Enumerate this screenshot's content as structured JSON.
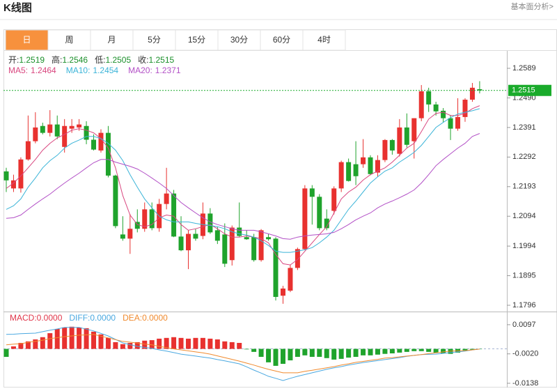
{
  "header": {
    "title": "K线图",
    "link": "基本面分析>"
  },
  "tabs": {
    "labels": [
      "日",
      "周",
      "月",
      "5分",
      "15分",
      "30分",
      "60分",
      "4时"
    ],
    "active": 0,
    "active_color": "#f7913d"
  },
  "chart_data": [
    {
      "type": "candlestick",
      "up_color": "#e8312f",
      "down_color": "#1fa32c",
      "ohlc_labels": [
        "开:",
        "高:",
        "低:",
        "收:"
      ],
      "ylim": [
        1.1775,
        1.2645
      ],
      "yticks": [
        1.2589,
        {
          "value": 1.249,
          "label": "1.2490"
        },
        1.2391,
        1.2292,
        1.2193,
        1.2094,
        1.1994,
        1.1895,
        1.1796
      ],
      "grid": false,
      "open": [
        1.2244,
        1.2187,
        1.2187,
        1.2284,
        1.2345,
        1.2396,
        1.2373,
        1.2401,
        1.2326,
        1.2387,
        1.2391,
        1.2396,
        1.235,
        1.2314,
        1.2373,
        1.223,
        1.2033,
        1.2019,
        1.2075,
        1.2052,
        1.2117,
        1.2054,
        1.2135,
        1.217,
        1.2026,
        1.198,
        1.2035,
        1.2028,
        1.2103,
        1.2047,
        1.2033,
        1.1947,
        1.2056,
        1.2024,
        1.2024,
        1.1947,
        1.2024,
        1.2019,
        1.1828,
        1.1845,
        1.1921,
        1.1984,
        1.2187,
        1.2159,
        1.2086,
        1.2112,
        1.2187,
        1.2275,
        1.2268,
        1.2268,
        1.2291,
        1.224,
        1.2282,
        1.2349,
        1.2303,
        1.2391,
        1.2345,
        1.2422,
        1.2512,
        1.2468,
        1.2447,
        1.2422,
        1.2387,
        1.2426,
        1.2484,
        1.2519
      ],
      "high": [
        1.2256,
        1.2233,
        1.2291,
        1.2431,
        1.2442,
        1.2407,
        1.2449,
        1.2431,
        1.2419,
        1.2419,
        1.2419,
        1.2412,
        1.2368,
        1.2385,
        1.2396,
        1.2233,
        1.2094,
        1.2101,
        1.2117,
        1.214,
        1.214,
        1.2152,
        1.2256,
        1.2182,
        1.2094,
        1.2047,
        1.2051,
        1.214,
        1.2121,
        1.2058,
        1.207,
        1.2063,
        1.214,
        1.2047,
        1.2035,
        1.2051,
        1.2035,
        1.2024,
        1.1861,
        1.1931,
        1.1989,
        1.2198,
        1.2198,
        1.2168,
        1.2117,
        1.2194,
        1.228,
        1.2287,
        1.2345,
        1.2352,
        1.2298,
        1.2298,
        1.2352,
        1.2352,
        1.2419,
        1.2438,
        1.2422,
        1.2533,
        1.2524,
        1.2477,
        1.2456,
        1.2433,
        1.2489,
        1.2489,
        1.254,
        1.2546
      ],
      "low": [
        1.2175,
        1.2175,
        1.2173,
        1.228,
        1.2338,
        1.2368,
        1.2361,
        1.2352,
        1.2307,
        1.2373,
        1.238,
        1.2335,
        1.2314,
        1.2307,
        1.2224,
        1.2054,
        1.2012,
        1.1968,
        1.204,
        1.2042,
        1.2047,
        1.2042,
        1.2117,
        1.2024,
        1.1977,
        1.1917,
        1.2012,
        1.2017,
        1.2035,
        1.2001,
        1.1924,
        1.1929,
        1.2024,
        1.2015,
        1.1942,
        1.1942,
        1.2012,
        1.1812,
        1.1801,
        1.184,
        1.1914,
        1.198,
        1.2066,
        1.2047,
        1.2047,
        1.21,
        1.2175,
        1.221,
        1.2198,
        1.2256,
        1.2231,
        1.2226,
        1.2275,
        1.23,
        1.2294,
        1.2324,
        1.2287,
        1.2412,
        1.2443,
        1.2431,
        1.2408,
        1.2349,
        1.238,
        1.241,
        1.2477,
        1.2505
      ],
      "close": [
        1.2214,
        1.2214,
        1.2284,
        1.2345,
        1.2391,
        1.2373,
        1.2401,
        1.2361,
        1.2396,
        1.2396,
        1.2401,
        1.235,
        1.2317,
        1.2373,
        1.223,
        1.2061,
        1.2019,
        1.2052,
        1.2052,
        1.2117,
        1.2054,
        1.2135,
        1.217,
        1.2026,
        1.198,
        1.2035,
        1.2019,
        1.2103,
        1.204,
        1.2012,
        1.1935,
        1.2056,
        1.2028,
        1.2017,
        1.1947,
        1.2047,
        1.2017,
        1.1824,
        1.1852,
        1.1921,
        1.1984,
        1.2187,
        1.2159,
        1.2054,
        1.2054,
        1.2187,
        1.2275,
        1.2212,
        1.2228,
        1.2291,
        1.2235,
        1.2282,
        1.2349,
        1.2314,
        1.2391,
        1.2333,
        1.2422,
        1.2512,
        1.2468,
        1.2445,
        1.2422,
        1.2387,
        1.2426,
        1.2484,
        1.2524,
        1.2515
      ],
      "series": [
        {
          "name": "MA5:",
          "color": "#d9467f",
          "values": [
            1.2187,
            1.2205,
            1.2229,
            1.2256,
            1.2284,
            1.2315,
            1.2338,
            1.2356,
            1.2368,
            1.2382,
            1.2387,
            1.2382,
            1.2373,
            1.2354,
            1.2322,
            1.2256,
            1.2163,
            1.2098,
            1.2066,
            1.2059,
            1.2066,
            1.2089,
            1.2098,
            1.2094,
            1.2066,
            1.2047,
            1.2052,
            1.2059,
            1.2066,
            1.2052,
            1.2035,
            1.2024,
            1.2024,
            1.2028,
            1.2024,
            1.2019,
            1.2005,
            1.1966,
            1.1935,
            1.1931,
            1.1949,
            1.1977,
            1.2005,
            1.2033,
            1.2059,
            1.2105,
            1.2152,
            1.2175,
            1.2191,
            1.2215,
            1.2233,
            1.2245,
            1.2256,
            1.2275,
            1.2298,
            1.2322,
            1.2338,
            1.2377,
            1.2419,
            1.2438,
            1.2442,
            1.2431,
            1.2431,
            1.2438,
            1.2454,
            1.2464
          ]
        },
        {
          "name": "MA10:",
          "color": "#3bb4d8",
          "values": [
            1.2117,
            1.2129,
            1.2152,
            1.2191,
            1.2222,
            1.2256,
            1.228,
            1.2298,
            1.2322,
            1.2338,
            1.2349,
            1.2361,
            1.2361,
            1.2354,
            1.2338,
            1.2315,
            1.228,
            1.2233,
            1.2191,
            1.2152,
            1.2122,
            1.2094,
            1.2082,
            1.2075,
            1.2075,
            1.2075,
            1.207,
            1.2066,
            1.2063,
            1.2059,
            1.2052,
            1.2042,
            1.2035,
            1.2031,
            1.2024,
            1.2012,
            1.1996,
            1.1977,
            1.1973,
            1.1973,
            1.1977,
            1.1982,
            1.1989,
            1.2005,
            1.2024,
            1.2047,
            1.2082,
            1.2117,
            1.2145,
            1.2175,
            1.2205,
            1.2226,
            1.2245,
            1.2256,
            1.2275,
            1.2291,
            1.2308,
            1.2331,
            1.2361,
            1.2391,
            1.2408,
            1.2424,
            1.2436,
            1.2442,
            1.2447,
            1.2454
          ]
        },
        {
          "name": "MA20:",
          "color": "#b24fc6",
          "values": [
            1.2087,
            1.2089,
            1.2098,
            1.2117,
            1.2135,
            1.2152,
            1.2168,
            1.2187,
            1.2205,
            1.2222,
            1.2238,
            1.2256,
            1.2273,
            1.2284,
            1.2284,
            1.2275,
            1.2268,
            1.2261,
            1.2252,
            1.2238,
            1.2222,
            1.2205,
            1.2187,
            1.2163,
            1.214,
            1.2122,
            1.2105,
            1.2089,
            1.2075,
            1.2066,
            1.2059,
            1.2052,
            1.2047,
            1.2047,
            1.2047,
            1.2042,
            1.2035,
            1.2028,
            1.2019,
            1.2017,
            1.2024,
            1.2028,
            1.2031,
            1.2033,
            1.2035,
            1.204,
            1.2052,
            1.2066,
            1.2082,
            1.2094,
            1.2105,
            1.2122,
            1.2135,
            1.2145,
            1.2156,
            1.2168,
            1.2182,
            1.2205,
            1.2233,
            1.2263,
            1.2284,
            1.2303,
            1.2322,
            1.2338,
            1.2361,
            1.2371
          ]
        }
      ],
      "last_price_color": "#1aab2b"
    },
    {
      "type": "macd",
      "ylim": [
        -0.0155,
        0.0147
      ],
      "yticks": [
        0.0097,
        {
          "value": -0.002,
          "label": "-0.0020"
        },
        -0.0138
      ],
      "histogram": {
        "name": "MACD:",
        "readout": "0.0000",
        "color": "#e0364a",
        "up_color": "#e8312f",
        "down_color": "#1fa32c",
        "values": [
          -0.0032,
          0.001,
          0.0024,
          0.003,
          0.0038,
          0.0047,
          0.0063,
          0.008,
          0.0086,
          0.0089,
          0.0086,
          0.0083,
          0.0069,
          0.0058,
          0.0044,
          0.0027,
          0.0019,
          0.0024,
          0.0027,
          0.0033,
          0.0035,
          0.0041,
          0.0044,
          0.0047,
          0.0044,
          0.0041,
          0.0044,
          0.0044,
          0.0041,
          0.0038,
          0.003,
          0.0027,
          0.0024,
          -0.0002,
          -0.0012,
          -0.0032,
          -0.0054,
          -0.0068,
          -0.006,
          -0.0046,
          -0.0032,
          -0.0026,
          -0.0032,
          -0.0032,
          -0.0037,
          -0.0043,
          -0.004,
          -0.0035,
          -0.0032,
          -0.0026,
          -0.0026,
          -0.0023,
          -0.002,
          -0.0018,
          -0.0015,
          -0.0012,
          -0.0009,
          -0.0009,
          -0.0012,
          -0.0015,
          -0.0018,
          -0.002,
          -0.0015,
          -0.0006,
          -0.0003,
          -0.0001
        ]
      },
      "series": [
        {
          "name": "DIFF:",
          "readout": "0.0000",
          "color": "#4aa8e0",
          "values": [
            0.0058,
            0.0059,
            0.0061,
            0.0062,
            0.0063,
            0.0069,
            0.0075,
            0.008,
            0.0086,
            0.0086,
            0.0086,
            0.0079,
            0.0072,
            0.0062,
            0.0052,
            0.0038,
            0.0024,
            0.0017,
            0.001,
            0.0006,
            0.0002,
            -0.0004,
            -0.0009,
            -0.0015,
            -0.0021,
            -0.0025,
            -0.0029,
            -0.0033,
            -0.0037,
            -0.0043,
            -0.0048,
            -0.0054,
            -0.006,
            -0.0072,
            -0.0085,
            -0.0097,
            -0.011,
            -0.0118,
            -0.0127,
            -0.0118,
            -0.011,
            -0.0103,
            -0.0096,
            -0.0089,
            -0.0082,
            -0.0076,
            -0.0071,
            -0.0065,
            -0.006,
            -0.0055,
            -0.0051,
            -0.0047,
            -0.0043,
            -0.0039,
            -0.0035,
            -0.003,
            -0.0026,
            -0.0023,
            -0.0022,
            -0.0021,
            -0.0018,
            -0.0015,
            -0.0012,
            -0.0009,
            -0.0004,
            -0.0001
          ]
        },
        {
          "name": "DEA:",
          "readout": "0.0000",
          "color": "#f08a2e",
          "values": [
            0.0016,
            0.0019,
            0.0021,
            0.0026,
            0.003,
            0.0035,
            0.0041,
            0.0045,
            0.0049,
            0.0052,
            0.0055,
            0.0056,
            0.0058,
            0.0051,
            0.0044,
            0.0037,
            0.003,
            0.0027,
            0.0023,
            0.0019,
            0.0016,
            0.001,
            0.0005,
            0.0,
            -0.0004,
            -0.0008,
            -0.0012,
            -0.0016,
            -0.0021,
            -0.0028,
            -0.0035,
            -0.0042,
            -0.0049,
            -0.0057,
            -0.0065,
            -0.0074,
            -0.0082,
            -0.0089,
            -0.0096,
            -0.0096,
            -0.0096,
            -0.009,
            -0.0086,
            -0.0081,
            -0.0076,
            -0.0071,
            -0.0065,
            -0.006,
            -0.0054,
            -0.005,
            -0.0046,
            -0.0042,
            -0.0037,
            -0.0035,
            -0.0032,
            -0.0029,
            -0.0026,
            -0.0023,
            -0.0019,
            -0.0016,
            -0.0012,
            -0.0009,
            -0.0008,
            -0.0007,
            -0.0004,
            -0.0001
          ]
        }
      ]
    }
  ]
}
